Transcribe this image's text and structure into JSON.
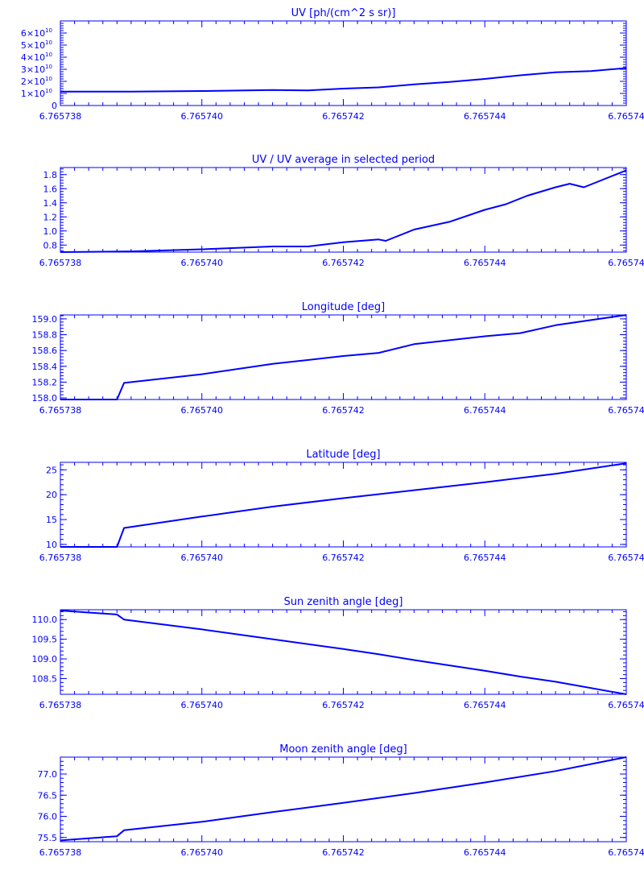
{
  "style": {
    "color": "#0000ff",
    "background": "#ffffff"
  },
  "x_ticks": [
    "6.765738",
    "6.765740",
    "6.765742",
    "6.765744",
    "6.76574"
  ],
  "chart_data": [
    {
      "type": "line",
      "title": "UV [ph/(cm^2 s sr)]",
      "xlim": [
        6.765738,
        6.765746
      ],
      "ylim": [
        0,
        70000000000.0
      ],
      "ytick_values": [
        0,
        10000000000.0,
        20000000000.0,
        30000000000.0,
        40000000000.0,
        50000000000.0,
        60000000000.0
      ],
      "ytick_labels": [
        {
          "m": "0",
          "e": ""
        },
        {
          "m": "1×10",
          "e": "10"
        },
        {
          "m": "2×10",
          "e": "10"
        },
        {
          "m": "3×10",
          "e": "10"
        },
        {
          "m": "4×10",
          "e": "10"
        },
        {
          "m": "5×10",
          "e": "10"
        },
        {
          "m": "6×10",
          "e": "10"
        }
      ],
      "x": [
        6.765738,
        6.765739,
        6.76574,
        6.765741,
        6.7657415,
        6.765742,
        6.7657425,
        6.765743,
        6.7657435,
        6.765744,
        6.7657445,
        6.765745,
        6.7657455,
        6.765746
      ],
      "y": [
        11500000000.0,
        11500000000.0,
        12000000000.0,
        12800000000.0,
        12500000000.0,
        14000000000.0,
        15000000000.0,
        17500000000.0,
        19500000000.0,
        22000000000.0,
        25000000000.0,
        27500000000.0,
        28500000000.0,
        31000000000.0
      ]
    },
    {
      "type": "line",
      "title": "UV / UV average in selected period",
      "xlim": [
        6.765738,
        6.765746
      ],
      "ylim": [
        0.7,
        1.9
      ],
      "ytick_values": [
        0.8,
        1.0,
        1.2,
        1.4,
        1.6,
        1.8
      ],
      "ytick_labels": [
        {
          "m": "0.8",
          "e": ""
        },
        {
          "m": "1.0",
          "e": ""
        },
        {
          "m": "1.2",
          "e": ""
        },
        {
          "m": "1.4",
          "e": ""
        },
        {
          "m": "1.6",
          "e": ""
        },
        {
          "m": "1.8",
          "e": ""
        }
      ],
      "x": [
        6.765738,
        6.765739,
        6.76574,
        6.765741,
        6.7657415,
        6.765742,
        6.7657425,
        6.7657426,
        6.765743,
        6.7657435,
        6.765744,
        6.7657443,
        6.7657446,
        6.765745,
        6.7657452,
        6.7657454,
        6.765746
      ],
      "y": [
        0.7,
        0.71,
        0.74,
        0.78,
        0.78,
        0.84,
        0.88,
        0.86,
        1.02,
        1.13,
        1.3,
        1.38,
        1.5,
        1.62,
        1.67,
        1.62,
        1.86
      ]
    },
    {
      "type": "line",
      "title": "Longitude [deg]",
      "xlim": [
        6.765738,
        6.765746
      ],
      "ylim": [
        157.98,
        159.05
      ],
      "ytick_values": [
        158.0,
        158.2,
        158.4,
        158.6,
        158.8,
        159.0
      ],
      "ytick_labels": [
        {
          "m": "158.0",
          "e": ""
        },
        {
          "m": "158.2",
          "e": ""
        },
        {
          "m": "158.4",
          "e": ""
        },
        {
          "m": "158.6",
          "e": ""
        },
        {
          "m": "158.8",
          "e": ""
        },
        {
          "m": "159.0",
          "e": ""
        }
      ],
      "x": [
        6.765738,
        6.7657388,
        6.7657389,
        6.76574,
        6.765741,
        6.765742,
        6.7657425,
        6.765743,
        6.765744,
        6.7657445,
        6.765745,
        6.765746
      ],
      "y": [
        157.98,
        157.98,
        158.19,
        158.3,
        158.43,
        158.53,
        158.57,
        158.68,
        158.78,
        158.82,
        158.92,
        159.05
      ]
    },
    {
      "type": "line",
      "title": "Latitude [deg]",
      "xlim": [
        6.765738,
        6.765746
      ],
      "ylim": [
        9.5,
        26.5
      ],
      "ytick_values": [
        10,
        15,
        20,
        25
      ],
      "ytick_labels": [
        {
          "m": "10",
          "e": ""
        },
        {
          "m": "15",
          "e": ""
        },
        {
          "m": "20",
          "e": ""
        },
        {
          "m": "25",
          "e": ""
        }
      ],
      "x": [
        6.765738,
        6.7657388,
        6.7657389,
        6.76574,
        6.765741,
        6.765742,
        6.765743,
        6.765744,
        6.765745,
        6.765746
      ],
      "y": [
        9.5,
        9.5,
        13.3,
        15.6,
        17.6,
        19.3,
        20.9,
        22.5,
        24.2,
        26.3
      ]
    },
    {
      "type": "line",
      "title": "Sun zenith angle [deg]",
      "xlim": [
        6.765738,
        6.765746
      ],
      "ylim": [
        108.1,
        110.25
      ],
      "ytick_values": [
        108.5,
        109.0,
        109.5,
        110.0
      ],
      "ytick_labels": [
        {
          "m": "108.5",
          "e": ""
        },
        {
          "m": "109.0",
          "e": ""
        },
        {
          "m": "109.5",
          "e": ""
        },
        {
          "m": "110.0",
          "e": ""
        }
      ],
      "x": [
        6.765738,
        6.7657388,
        6.7657389,
        6.76574,
        6.765741,
        6.765742,
        6.7657425,
        6.765743,
        6.765744,
        6.7657445,
        6.765745,
        6.765746
      ],
      "y": [
        110.23,
        110.13,
        110.0,
        109.75,
        109.5,
        109.25,
        109.12,
        108.97,
        108.7,
        108.55,
        108.42,
        108.1
      ]
    },
    {
      "type": "line",
      "title": "Moon zenith angle [deg]",
      "xlim": [
        6.765738,
        6.765746
      ],
      "ylim": [
        75.4,
        77.4
      ],
      "ytick_values": [
        75.5,
        76.0,
        76.5,
        77.0
      ],
      "ytick_labels": [
        {
          "m": "75.5",
          "e": ""
        },
        {
          "m": "76.0",
          "e": ""
        },
        {
          "m": "76.5",
          "e": ""
        },
        {
          "m": "77.0",
          "e": ""
        }
      ],
      "x": [
        6.765738,
        6.7657388,
        6.7657389,
        6.76574,
        6.765741,
        6.765742,
        6.765743,
        6.765744,
        6.765745,
        6.765746
      ],
      "y": [
        75.43,
        75.53,
        75.67,
        75.87,
        76.1,
        76.32,
        76.55,
        76.8,
        77.07,
        77.4
      ]
    }
  ]
}
